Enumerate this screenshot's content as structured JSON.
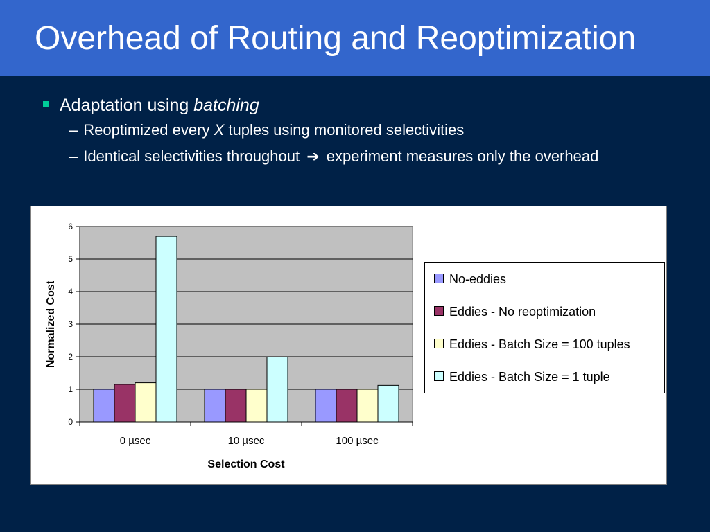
{
  "slide": {
    "title": "Overhead of Routing and Reoptimization",
    "bullet_main_prefix": "Adaptation using ",
    "bullet_main_emph": "batching",
    "sub1_dash": "–",
    "sub1_prefix": "Reoptimized every ",
    "sub1_emph": "X",
    "sub1_suffix": " tuples using monitored selectivities",
    "sub2_dash": "–",
    "sub2_prefix": "Identical selectivities throughout ",
    "sub2_arrow": "➔",
    "sub2_suffix": " experiment measures only the overhead"
  },
  "colors": {
    "title_bar": "#3366cc",
    "background": "#002147",
    "bullet_marker": "#00cc99",
    "plot_area": "#c0c0c0"
  },
  "chart_data": {
    "type": "bar",
    "title": "",
    "xlabel": "Selection Cost",
    "ylabel": "Normalized Cost",
    "categories": [
      "0 µsec",
      "10 µsec",
      "100 µsec"
    ],
    "ylim": [
      0,
      6
    ],
    "yticks": [
      "0",
      "1",
      "2",
      "3",
      "4",
      "5",
      "6"
    ],
    "grid": true,
    "legend_position": "right",
    "series": [
      {
        "name": "No-eddies",
        "color": "#9999ff",
        "values": [
          1.0,
          1.0,
          1.0
        ]
      },
      {
        "name": "Eddies - No reoptimization",
        "color": "#993366",
        "values": [
          1.15,
          1.0,
          1.0
        ]
      },
      {
        "name": "Eddies - Batch Size = 100 tuples",
        "color": "#ffffcc",
        "values": [
          1.2,
          1.0,
          1.0
        ]
      },
      {
        "name": "Eddies - Batch Size = 1 tuple",
        "color": "#ccffff",
        "values": [
          5.7,
          2.0,
          1.12
        ]
      }
    ]
  }
}
